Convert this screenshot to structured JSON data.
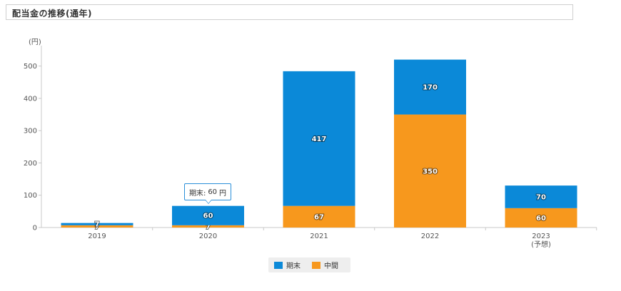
{
  "header": {
    "title": "配当金の推移(通年)"
  },
  "chart_data": {
    "type": "bar",
    "stacked": true,
    "categories": [
      "2019",
      "2020",
      "2021",
      "2022",
      "2023"
    ],
    "category_sublabels": [
      "",
      "",
      "",
      "",
      "(予想)"
    ],
    "series": [
      {
        "name": "中間",
        "values": [
          7,
          7,
          67,
          350,
          60
        ],
        "color": "#f7981d"
      },
      {
        "name": "期末",
        "values": [
          7,
          60,
          417,
          170,
          70
        ],
        "color": "#0b89d8"
      }
    ],
    "ylabel": "(円)",
    "ylim": [
      0,
      550
    ],
    "yticks": [
      0,
      100,
      200,
      300,
      400,
      500
    ],
    "grid": false,
    "legend_position": "bottom"
  },
  "legend": [
    {
      "label": "期末",
      "color": "#0b89d8"
    },
    {
      "label": "中間",
      "color": "#f7981d"
    }
  ],
  "tooltip": {
    "series": "期末",
    "value": "60",
    "unit": "円",
    "category": "2020"
  }
}
